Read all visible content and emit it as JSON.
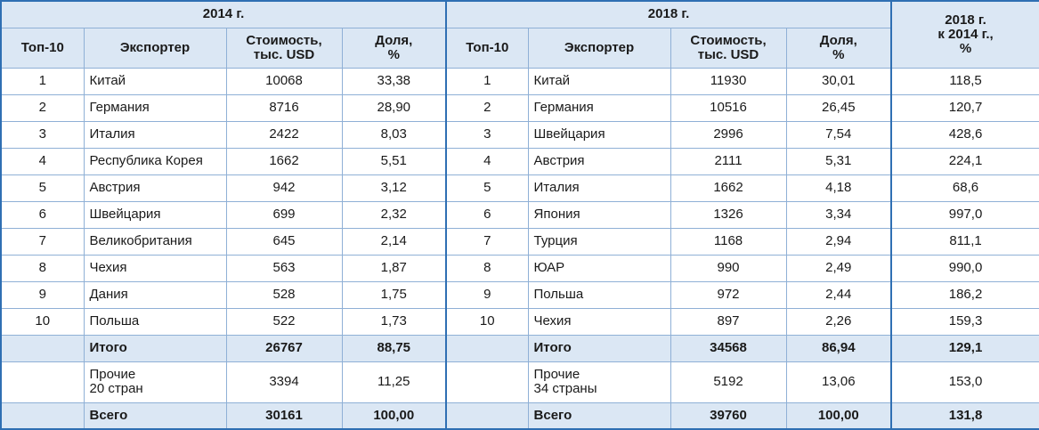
{
  "table": {
    "header": {
      "groups": [
        "2014 г.",
        "2018 г.",
        "2018 г.\nк 2014 г.,\n%"
      ],
      "columns": [
        "Топ-10",
        "Экспортер",
        "Стоимость,\nтыс. USD",
        "Доля,\n%",
        "Топ-10",
        "Экспортер",
        "Стоимость,\nтыс. USD",
        "Доля,\n%"
      ]
    },
    "rows": [
      [
        "1",
        "Китай",
        "10068",
        "33,38",
        "1",
        "Китай",
        "11930",
        "30,01",
        "118,5"
      ],
      [
        "2",
        "Германия",
        "8716",
        "28,90",
        "2",
        "Германия",
        "10516",
        "26,45",
        "120,7"
      ],
      [
        "3",
        "Италия",
        "2422",
        "8,03",
        "3",
        "Швейцария",
        "2996",
        "7,54",
        "428,6"
      ],
      [
        "4",
        "Республика Корея",
        "1662",
        "5,51",
        "4",
        "Австрия",
        "2111",
        "5,31",
        "224,1"
      ],
      [
        "5",
        "Австрия",
        "942",
        "3,12",
        "5",
        "Италия",
        "1662",
        "4,18",
        "68,6"
      ],
      [
        "6",
        "Швейцария",
        "699",
        "2,32",
        "6",
        "Япония",
        "1326",
        "3,34",
        "997,0"
      ],
      [
        "7",
        "Великобритания",
        "645",
        "2,14",
        "7",
        "Турция",
        "1168",
        "2,94",
        "811,1"
      ],
      [
        "8",
        "Чехия",
        "563",
        "1,87",
        "8",
        "ЮАР",
        "990",
        "2,49",
        "990,0"
      ],
      [
        "9",
        "Дания",
        "528",
        "1,75",
        "9",
        "Польша",
        "972",
        "2,44",
        "186,2"
      ],
      [
        "10",
        "Польша",
        "522",
        "1,73",
        "10",
        "Чехия",
        "897",
        "2,26",
        "159,3"
      ],
      [
        null,
        "Итого",
        "26767",
        "88,75",
        null,
        "Итого",
        "34568",
        "86,94",
        "129,1"
      ],
      [
        null,
        "Прочие\n20 стран",
        "3394",
        "11,25",
        null,
        "Прочие\n34 страны",
        "5192",
        "13,06",
        "153,0"
      ],
      [
        null,
        "Всего",
        "30161",
        "100,00",
        null,
        "Всего",
        "39760",
        "100,00",
        "131,8"
      ]
    ]
  }
}
